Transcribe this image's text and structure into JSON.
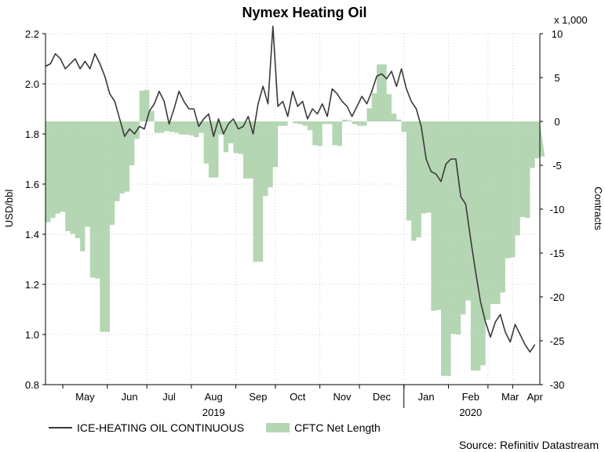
{
  "chart_data": {
    "type": "line",
    "title": "Nymex Heating Oil",
    "ylabel": "USD/bbl",
    "y2label": "Contracts",
    "y2_multiplier_label": "x 1,000",
    "ylim": [
      0.8,
      2.2
    ],
    "y2lim": [
      -30,
      10
    ],
    "yticks": [
      "0.8",
      "1.0",
      "1.2",
      "1.4",
      "1.6",
      "1.8",
      "2.0",
      "2.2"
    ],
    "y2ticks": [
      "-30",
      "-25",
      "-20",
      "-15",
      "-10",
      "-5",
      "0",
      "5",
      "10"
    ],
    "month_labels": [
      "May",
      "Jun",
      "Jul",
      "Aug",
      "Sep",
      "Oct",
      "Nov",
      "Dec",
      "Jan",
      "Feb",
      "Mar",
      "Apr"
    ],
    "year_labels": [
      "2019",
      "2020"
    ],
    "grid": true,
    "legend_position": "bottom",
    "source": "Source: Refinitiv Datastream",
    "colors": {
      "price": "#3a3a3a",
      "cftc": "#b5d6b3",
      "grid": "#cfcfcf"
    },
    "series": [
      {
        "name": "ICE-HEATING OIL CONTINUOUS",
        "type": "line",
        "axis": "left",
        "points": [
          [
            0,
            2.07
          ],
          [
            1,
            2.08
          ],
          [
            2,
            2.12
          ],
          [
            3,
            2.1
          ],
          [
            4,
            2.06
          ],
          [
            5,
            2.08
          ],
          [
            6,
            2.1
          ],
          [
            7,
            2.06
          ],
          [
            8,
            2.09
          ],
          [
            9,
            2.06
          ],
          [
            10,
            2.12
          ],
          [
            11,
            2.08
          ],
          [
            12,
            2.03
          ],
          [
            13,
            1.96
          ],
          [
            14,
            1.93
          ],
          [
            15,
            1.86
          ],
          [
            16,
            1.79
          ],
          [
            17,
            1.82
          ],
          [
            18,
            1.8
          ],
          [
            19,
            1.83
          ],
          [
            20,
            1.82
          ],
          [
            21,
            1.89
          ],
          [
            22,
            1.92
          ],
          [
            23,
            1.97
          ],
          [
            24,
            1.93
          ],
          [
            25,
            1.84
          ],
          [
            26,
            1.9
          ],
          [
            27,
            1.97
          ],
          [
            28,
            1.93
          ],
          [
            29,
            1.9
          ],
          [
            30,
            1.9
          ],
          [
            31,
            1.83
          ],
          [
            32,
            1.86
          ],
          [
            33,
            1.88
          ],
          [
            34,
            1.79
          ],
          [
            35,
            1.86
          ],
          [
            36,
            1.8
          ],
          [
            37,
            1.84
          ],
          [
            38,
            1.86
          ],
          [
            39,
            1.82
          ],
          [
            40,
            1.83
          ],
          [
            41,
            1.87
          ],
          [
            42,
            1.8
          ],
          [
            43,
            1.92
          ],
          [
            44,
            1.99
          ],
          [
            45,
            1.92
          ],
          [
            46,
            2.23
          ],
          [
            47,
            1.91
          ],
          [
            48,
            1.93
          ],
          [
            49,
            1.87
          ],
          [
            50,
            1.97
          ],
          [
            51,
            1.91
          ],
          [
            52,
            1.93
          ],
          [
            53,
            1.86
          ],
          [
            54,
            1.9
          ],
          [
            55,
            1.88
          ],
          [
            56,
            1.92
          ],
          [
            57,
            1.87
          ],
          [
            58,
            1.98
          ],
          [
            59,
            1.96
          ],
          [
            60,
            1.93
          ],
          [
            61,
            1.91
          ],
          [
            62,
            1.87
          ],
          [
            63,
            1.91
          ],
          [
            64,
            1.95
          ],
          [
            65,
            1.92
          ],
          [
            66,
            1.97
          ],
          [
            67,
            2.03
          ],
          [
            68,
            2.04
          ],
          [
            69,
            2.02
          ],
          [
            70,
            2.05
          ],
          [
            71,
            1.99
          ],
          [
            72,
            2.06
          ],
          [
            73,
            1.98
          ],
          [
            74,
            1.93
          ],
          [
            75,
            1.9
          ],
          [
            76,
            1.83
          ],
          [
            77,
            1.7
          ],
          [
            78,
            1.65
          ],
          [
            79,
            1.64
          ],
          [
            80,
            1.61
          ],
          [
            81,
            1.68
          ],
          [
            82,
            1.7
          ],
          [
            83,
            1.7
          ],
          [
            84,
            1.55
          ],
          [
            85,
            1.52
          ],
          [
            86,
            1.38
          ],
          [
            87,
            1.25
          ],
          [
            88,
            1.13
          ],
          [
            89,
            1.05
          ],
          [
            90,
            0.99
          ],
          [
            91,
            1.05
          ],
          [
            92,
            1.08
          ],
          [
            93,
            1.01
          ],
          [
            94,
            0.97
          ],
          [
            95,
            1.04
          ],
          [
            96,
            1.0
          ],
          [
            97,
            0.96
          ],
          [
            98,
            0.93
          ],
          [
            99,
            0.96
          ]
        ]
      },
      {
        "name": "CFTC Net Length",
        "type": "area",
        "axis": "right",
        "points": [
          [
            0,
            -11.5
          ],
          [
            1,
            -11.0
          ],
          [
            2,
            -10.5
          ],
          [
            3,
            -10.3
          ],
          [
            4,
            -12.5
          ],
          [
            5,
            -12.8
          ],
          [
            6,
            -13.3
          ],
          [
            7,
            -14.8
          ],
          [
            8,
            -12.0
          ],
          [
            9,
            -17.8
          ],
          [
            10,
            -17.9
          ],
          [
            11,
            -24.0
          ],
          [
            12,
            -24.0
          ],
          [
            13,
            -11.8
          ],
          [
            14,
            -9.1
          ],
          [
            15,
            -8.2
          ],
          [
            16,
            -8.0
          ],
          [
            17,
            -5.0
          ],
          [
            18,
            -2.0
          ],
          [
            19,
            3.5
          ],
          [
            20,
            3.6
          ],
          [
            21,
            1.2
          ],
          [
            22,
            -1.3
          ],
          [
            23,
            -1.3
          ],
          [
            24,
            -1.1
          ],
          [
            25,
            -1.2
          ],
          [
            26,
            -1.3
          ],
          [
            27,
            -1.5
          ],
          [
            28,
            -1.5
          ],
          [
            29,
            -1.6
          ],
          [
            30,
            -1.8
          ],
          [
            31,
            -1.3
          ],
          [
            32,
            -4.8
          ],
          [
            33,
            -6.4
          ],
          [
            34,
            -6.4
          ],
          [
            35,
            -1.5
          ],
          [
            36,
            -3.5
          ],
          [
            37,
            -2.5
          ],
          [
            38,
            -3.6
          ],
          [
            39,
            -3.7
          ],
          [
            40,
            -6.5
          ],
          [
            41,
            -6.5
          ],
          [
            42,
            -16.0
          ],
          [
            43,
            -16.0
          ],
          [
            44,
            -8.5
          ],
          [
            45,
            -7.5
          ],
          [
            46,
            -5.2
          ],
          [
            47,
            -0.5
          ],
          [
            48,
            -0.5
          ],
          [
            49,
            0.0
          ],
          [
            50,
            -0.2
          ],
          [
            51,
            -0.3
          ],
          [
            52,
            -0.5
          ],
          [
            53,
            -1.0
          ],
          [
            54,
            -2.7
          ],
          [
            55,
            -2.8
          ],
          [
            56,
            -0.3
          ],
          [
            57,
            -0.3
          ],
          [
            58,
            -2.7
          ],
          [
            59,
            -2.8
          ],
          [
            60,
            0.2
          ],
          [
            61,
            0.1
          ],
          [
            62,
            -0.3
          ],
          [
            63,
            -0.5
          ],
          [
            64,
            -0.5
          ],
          [
            65,
            1.5
          ],
          [
            66,
            3.2
          ],
          [
            67,
            6.5
          ],
          [
            68,
            6.5
          ],
          [
            69,
            3.1
          ],
          [
            70,
            0.9
          ],
          [
            71,
            0.2
          ],
          [
            72,
            -1.2
          ],
          [
            73,
            -11.3
          ],
          [
            74,
            -13.6
          ],
          [
            75,
            -13.2
          ],
          [
            76,
            -10.5
          ],
          [
            77,
            -10.4
          ],
          [
            78,
            -21.6
          ],
          [
            79,
            -21.5
          ],
          [
            80,
            -29.0
          ],
          [
            81,
            -29.0
          ],
          [
            82,
            -24.2
          ],
          [
            83,
            -24.3
          ],
          [
            84,
            -22.0
          ],
          [
            85,
            -20.4
          ],
          [
            86,
            -28.4
          ],
          [
            87,
            -28.4
          ],
          [
            88,
            -27.8
          ],
          [
            89,
            -22.6
          ],
          [
            90,
            -20.8
          ],
          [
            91,
            -20.8
          ],
          [
            92,
            -19.5
          ],
          [
            93,
            -15.6
          ],
          [
            94,
            -15.5
          ],
          [
            95,
            -13.0
          ],
          [
            96,
            -10.9
          ],
          [
            97,
            -11.0
          ],
          [
            98,
            -5.3
          ],
          [
            99,
            -4.2
          ],
          [
            100,
            -4.0
          ]
        ]
      }
    ],
    "x_index_domain": [
      0,
      100
    ],
    "month_marks": [
      {
        "label": "May",
        "index": 8
      },
      {
        "label": "Jun",
        "index": 17
      },
      {
        "label": "Jul",
        "index": 25
      },
      {
        "label": "Aug",
        "index": 34
      },
      {
        "label": "Sep",
        "index": 43
      },
      {
        "label": "Oct",
        "index": 51
      },
      {
        "label": "Nov",
        "index": 60
      },
      {
        "label": "Dec",
        "index": 68
      },
      {
        "label": "Jan",
        "index": 77
      },
      {
        "label": "Feb",
        "index": 86
      },
      {
        "label": "Mar",
        "index": 94
      },
      {
        "label": "Apr",
        "index": 99
      }
    ],
    "year_marks": [
      {
        "label": "2019",
        "index": 34
      },
      {
        "label": "2020",
        "index": 86
      }
    ]
  }
}
